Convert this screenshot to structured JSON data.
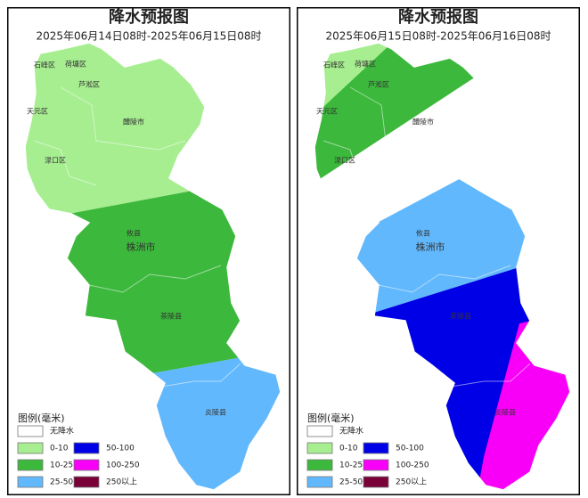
{
  "panels": [
    {
      "title": "降水预报图",
      "period": "2025年06月14日08时-2025年06月15日08时"
    },
    {
      "title": "降水预报图",
      "period": "2025年06月15日08时-2025年06月16日08时"
    }
  ],
  "places": [
    "石峰区",
    "荷塘区",
    "芦淞区",
    "天元区",
    "醴陵市",
    "渌口区",
    "攸县",
    "株洲市",
    "茶陵县",
    "炎陵县"
  ],
  "legend": {
    "title": "图例(毫米)",
    "items": [
      {
        "label": "无降水",
        "color": "#ffffff"
      },
      {
        "label": "0-10",
        "color": "#a6ee90"
      },
      {
        "label": "10-25",
        "color": "#3cb83c"
      },
      {
        "label": "25-50",
        "color": "#62b8fc"
      },
      {
        "label": "50-100",
        "color": "#0000e6"
      },
      {
        "label": "100-250",
        "color": "#f800f8"
      },
      {
        "label": "250以上",
        "color": "#7a0038"
      }
    ]
  }
}
